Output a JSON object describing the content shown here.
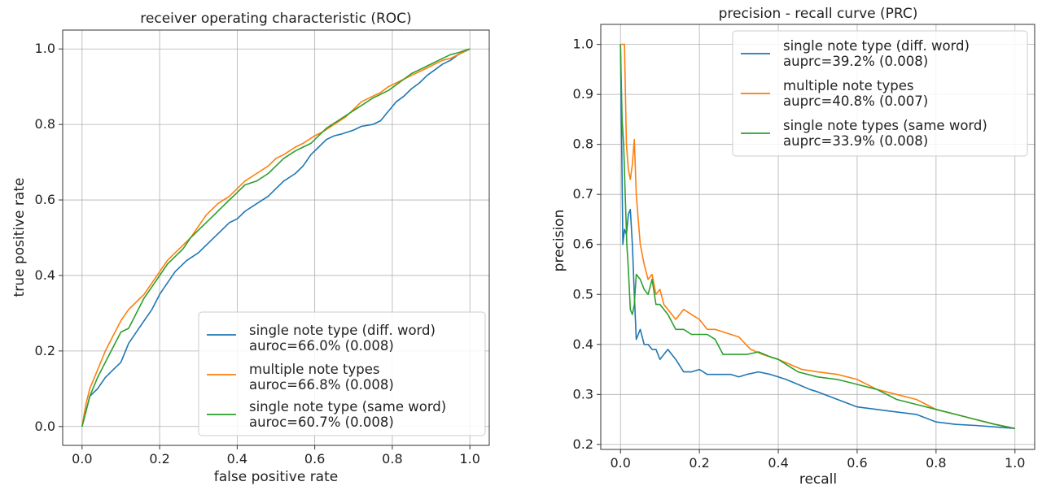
{
  "chart_data": [
    {
      "type": "line",
      "title": "receiver operating characteristic (ROC)",
      "xlabel": "false positive rate",
      "ylabel": "true positive rate",
      "xlim": [
        -0.05,
        1.05
      ],
      "ylim": [
        -0.05,
        1.05
      ],
      "xticks": [
        "0.0",
        "0.2",
        "0.4",
        "0.6",
        "0.8",
        "1.0"
      ],
      "yticks": [
        "0.0",
        "0.2",
        "0.4",
        "0.6",
        "0.8",
        "1.0"
      ],
      "grid": true,
      "legend_position": "lower-right",
      "series": [
        {
          "name": "single note type (diff. word)",
          "label_line2": "auroc=66.0% (0.008)",
          "color": "#1f77b4",
          "x": [
            0,
            0.01,
            0.02,
            0.04,
            0.06,
            0.08,
            0.1,
            0.12,
            0.14,
            0.16,
            0.18,
            0.2,
            0.22,
            0.24,
            0.27,
            0.3,
            0.33,
            0.36,
            0.38,
            0.4,
            0.42,
            0.45,
            0.48,
            0.5,
            0.52,
            0.55,
            0.57,
            0.59,
            0.61,
            0.63,
            0.65,
            0.67,
            0.7,
            0.72,
            0.75,
            0.77,
            0.79,
            0.81,
            0.83,
            0.85,
            0.87,
            0.89,
            0.91,
            0.93,
            0.95,
            0.97,
            0.99,
            1.0
          ],
          "y": [
            0,
            0.04,
            0.08,
            0.1,
            0.13,
            0.15,
            0.17,
            0.22,
            0.25,
            0.28,
            0.31,
            0.35,
            0.38,
            0.41,
            0.44,
            0.46,
            0.49,
            0.52,
            0.54,
            0.55,
            0.57,
            0.59,
            0.61,
            0.63,
            0.65,
            0.67,
            0.69,
            0.72,
            0.74,
            0.76,
            0.77,
            0.775,
            0.785,
            0.795,
            0.8,
            0.81,
            0.835,
            0.86,
            0.875,
            0.895,
            0.91,
            0.93,
            0.945,
            0.96,
            0.97,
            0.985,
            0.995,
            1.0
          ]
        },
        {
          "name": "multiple note types",
          "label_line2": "auroc=66.8% (0.008)",
          "color": "#ff7f0e",
          "x": [
            0,
            0.01,
            0.02,
            0.04,
            0.06,
            0.08,
            0.1,
            0.12,
            0.14,
            0.16,
            0.18,
            0.2,
            0.22,
            0.24,
            0.26,
            0.28,
            0.3,
            0.32,
            0.35,
            0.38,
            0.4,
            0.42,
            0.45,
            0.48,
            0.5,
            0.52,
            0.55,
            0.57,
            0.6,
            0.62,
            0.65,
            0.68,
            0.7,
            0.72,
            0.75,
            0.77,
            0.79,
            0.81,
            0.83,
            0.85,
            0.87,
            0.89,
            0.91,
            0.93,
            0.95,
            0.97,
            0.99,
            1.0
          ],
          "y": [
            0,
            0.06,
            0.1,
            0.15,
            0.2,
            0.24,
            0.28,
            0.31,
            0.33,
            0.35,
            0.38,
            0.41,
            0.44,
            0.46,
            0.48,
            0.5,
            0.53,
            0.56,
            0.59,
            0.61,
            0.63,
            0.65,
            0.67,
            0.69,
            0.71,
            0.72,
            0.74,
            0.75,
            0.77,
            0.78,
            0.8,
            0.82,
            0.84,
            0.86,
            0.875,
            0.885,
            0.9,
            0.91,
            0.92,
            0.93,
            0.94,
            0.95,
            0.96,
            0.97,
            0.975,
            0.985,
            0.995,
            1.0
          ]
        },
        {
          "name": "single note type (same word)",
          "label_line2": "auroc=60.7% (0.008)",
          "color": "#2ca02c",
          "x": [
            0,
            0.01,
            0.02,
            0.04,
            0.06,
            0.08,
            0.1,
            0.12,
            0.14,
            0.16,
            0.18,
            0.2,
            0.22,
            0.24,
            0.26,
            0.28,
            0.3,
            0.33,
            0.36,
            0.38,
            0.4,
            0.42,
            0.45,
            0.48,
            0.5,
            0.52,
            0.55,
            0.57,
            0.59,
            0.61,
            0.63,
            0.66,
            0.69,
            0.72,
            0.75,
            0.77,
            0.79,
            0.81,
            0.83,
            0.85,
            0.87,
            0.89,
            0.91,
            0.93,
            0.95,
            0.97,
            0.99,
            1.0
          ],
          "y": [
            0,
            0.04,
            0.08,
            0.13,
            0.17,
            0.21,
            0.25,
            0.26,
            0.3,
            0.34,
            0.37,
            0.4,
            0.43,
            0.45,
            0.47,
            0.5,
            0.52,
            0.55,
            0.58,
            0.6,
            0.62,
            0.64,
            0.65,
            0.67,
            0.69,
            0.71,
            0.73,
            0.74,
            0.75,
            0.77,
            0.79,
            0.81,
            0.83,
            0.85,
            0.87,
            0.88,
            0.89,
            0.905,
            0.92,
            0.935,
            0.945,
            0.955,
            0.965,
            0.975,
            0.985,
            0.99,
            0.997,
            1.0
          ]
        }
      ]
    },
    {
      "type": "line",
      "title": "precision - recall curve (PRC)",
      "xlabel": "recall",
      "ylabel": "precision",
      "xlim": [
        -0.05,
        1.05
      ],
      "ylim": [
        0.19,
        1.04
      ],
      "xticks": [
        "0.0",
        "0.2",
        "0.4",
        "0.6",
        "0.8",
        "1.0"
      ],
      "yticks": [
        "0.2",
        "0.3",
        "0.4",
        "0.5",
        "0.6",
        "0.7",
        "0.8",
        "0.9",
        "1.0"
      ],
      "grid": true,
      "legend_position": "upper-right",
      "series": [
        {
          "name": "single note type (diff. word)",
          "label_line2": "auprc=39.2% (0.008)",
          "color": "#1f77b4",
          "x": [
            0,
            0.003,
            0.006,
            0.01,
            0.015,
            0.02,
            0.025,
            0.03,
            0.035,
            0.04,
            0.045,
            0.05,
            0.06,
            0.07,
            0.08,
            0.09,
            0.1,
            0.11,
            0.12,
            0.13,
            0.14,
            0.16,
            0.18,
            0.2,
            0.22,
            0.25,
            0.28,
            0.3,
            0.32,
            0.35,
            0.38,
            0.4,
            0.42,
            0.45,
            0.48,
            0.5,
            0.55,
            0.6,
            0.65,
            0.7,
            0.75,
            0.8,
            0.85,
            0.9,
            0.95,
            1.0
          ],
          "y": [
            1.0,
            0.8,
            0.6,
            0.63,
            0.62,
            0.66,
            0.67,
            0.6,
            0.5,
            0.41,
            0.42,
            0.43,
            0.4,
            0.4,
            0.39,
            0.39,
            0.37,
            0.38,
            0.39,
            0.38,
            0.37,
            0.345,
            0.345,
            0.35,
            0.34,
            0.34,
            0.34,
            0.335,
            0.34,
            0.345,
            0.34,
            0.335,
            0.33,
            0.32,
            0.31,
            0.305,
            0.29,
            0.275,
            0.27,
            0.265,
            0.26,
            0.245,
            0.24,
            0.238,
            0.235,
            0.232
          ]
        },
        {
          "name": "multiple note types",
          "label_line2": "auprc=40.8% (0.007)",
          "color": "#ff7f0e",
          "x": [
            0,
            0.005,
            0.01,
            0.015,
            0.02,
            0.025,
            0.03,
            0.035,
            0.04,
            0.045,
            0.05,
            0.06,
            0.07,
            0.08,
            0.09,
            0.1,
            0.11,
            0.12,
            0.13,
            0.14,
            0.16,
            0.18,
            0.2,
            0.22,
            0.24,
            0.26,
            0.28,
            0.3,
            0.33,
            0.36,
            0.4,
            0.43,
            0.46,
            0.5,
            0.55,
            0.6,
            0.65,
            0.7,
            0.75,
            0.8,
            0.85,
            0.9,
            0.95,
            1.0
          ],
          "y": [
            1.0,
            1.0,
            1.0,
            0.8,
            0.75,
            0.73,
            0.76,
            0.81,
            0.7,
            0.65,
            0.6,
            0.56,
            0.53,
            0.54,
            0.5,
            0.51,
            0.48,
            0.47,
            0.46,
            0.45,
            0.47,
            0.46,
            0.45,
            0.43,
            0.43,
            0.425,
            0.42,
            0.415,
            0.39,
            0.38,
            0.37,
            0.36,
            0.35,
            0.345,
            0.34,
            0.33,
            0.31,
            0.3,
            0.29,
            0.27,
            0.26,
            0.25,
            0.24,
            0.232
          ]
        },
        {
          "name": "single note types (same word)",
          "label_line2": "auprc=33.9% (0.008)",
          "color": "#2ca02c",
          "x": [
            0,
            0.004,
            0.008,
            0.012,
            0.016,
            0.02,
            0.025,
            0.03,
            0.035,
            0.04,
            0.05,
            0.06,
            0.07,
            0.08,
            0.09,
            0.1,
            0.12,
            0.14,
            0.16,
            0.18,
            0.2,
            0.22,
            0.24,
            0.26,
            0.28,
            0.3,
            0.32,
            0.35,
            0.38,
            0.4,
            0.42,
            0.45,
            0.5,
            0.55,
            0.6,
            0.65,
            0.7,
            0.75,
            0.8,
            0.85,
            0.9,
            0.95,
            1.0
          ],
          "y": [
            1.0,
            0.85,
            0.8,
            0.7,
            0.6,
            0.55,
            0.47,
            0.46,
            0.48,
            0.54,
            0.53,
            0.51,
            0.5,
            0.53,
            0.48,
            0.48,
            0.46,
            0.43,
            0.43,
            0.42,
            0.42,
            0.42,
            0.41,
            0.38,
            0.38,
            0.38,
            0.38,
            0.385,
            0.375,
            0.37,
            0.36,
            0.345,
            0.335,
            0.33,
            0.32,
            0.31,
            0.29,
            0.28,
            0.27,
            0.26,
            0.25,
            0.24,
            0.232
          ]
        }
      ]
    }
  ]
}
